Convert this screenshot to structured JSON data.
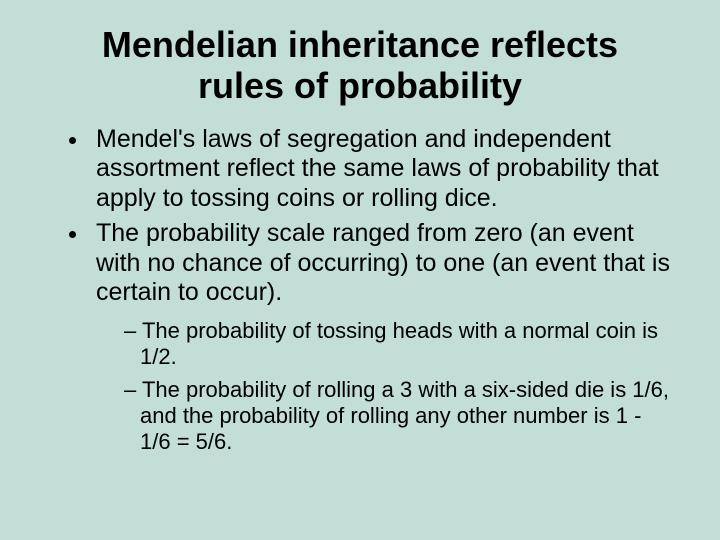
{
  "background_color": "#c3ded7",
  "text_color": "#000000",
  "title": {
    "text": "Mendelian inheritance reflects rules of probability",
    "fontsize": 36,
    "weight": "bold",
    "align": "center"
  },
  "bullets": {
    "level1_fontsize": 25,
    "level2_fontsize": 22,
    "items": [
      "Mendel's laws of segregation and independent assortment reflect the same laws of probability that apply to tossing coins or rolling dice.",
      "The probability scale ranged from zero (an event with no chance of occurring) to one (an event that is certain to occur)."
    ],
    "subitems": [
      "The probability of tossing heads with a normal coin is 1/2.",
      "The probability of rolling a 3 with a six-sided die is 1/6, and the probability of rolling any other number is 1 - 1/6 = 5/6."
    ]
  }
}
